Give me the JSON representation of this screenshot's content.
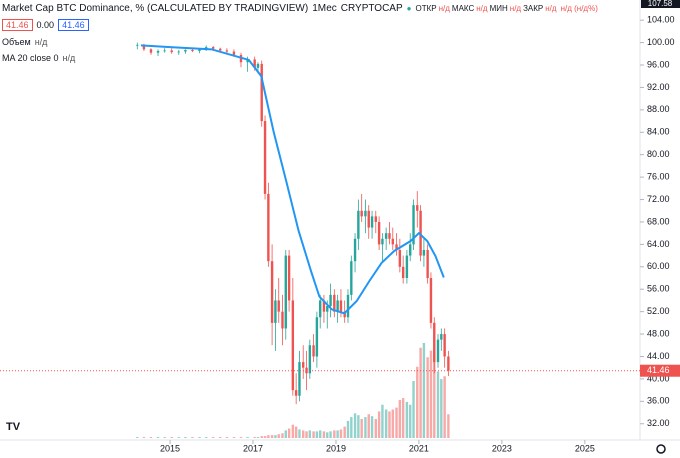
{
  "header": {
    "symbol": "Market Cap BTC Dominance, % (CALCULATED BY TRADINGVIEW)",
    "interval": "1Мес",
    "exchange": "CRYPTOCAP",
    "ohlc": [
      {
        "label": "ОТКР",
        "value": "н/д"
      },
      {
        "label": "МАКС",
        "value": "н/д"
      },
      {
        "label": "МИН",
        "value": "н/д"
      },
      {
        "label": "ЗАКР",
        "value": "н/д"
      },
      {
        "label": "",
        "value": "н/д (н/д%)"
      }
    ],
    "bid": "41.46",
    "spread": "0.00",
    "ask": "41.46",
    "volume_label": "Объем",
    "volume_value": "н/д",
    "ma_label": "MA 20 close 0",
    "ma_value": "н/д",
    "corner_label": "107.58"
  },
  "chart_data": {
    "type": "candlestick",
    "x": [
      2014.21,
      2014.37,
      2014.54,
      2014.71,
      2014.87,
      2015.04,
      2015.21,
      2015.37,
      2015.54,
      2015.71,
      2015.87,
      2016.04,
      2016.21,
      2016.37,
      2016.54,
      2016.71,
      2016.87,
      2017.04,
      2017.12,
      2017.21,
      2017.29,
      2017.37,
      2017.46,
      2017.54,
      2017.62,
      2017.71,
      2017.79,
      2017.87,
      2017.96,
      2018.04,
      2018.12,
      2018.21,
      2018.29,
      2018.37,
      2018.46,
      2018.54,
      2018.62,
      2018.71,
      2018.79,
      2018.87,
      2018.96,
      2019.04,
      2019.12,
      2019.21,
      2019.29,
      2019.37,
      2019.46,
      2019.54,
      2019.62,
      2019.71,
      2019.79,
      2019.87,
      2019.96,
      2020.04,
      2020.12,
      2020.21,
      2020.29,
      2020.37,
      2020.46,
      2020.54,
      2020.62,
      2020.71,
      2020.79,
      2020.87,
      2020.96,
      2021.04,
      2021.12,
      2021.21,
      2021.29,
      2021.37,
      2021.46,
      2021.54,
      2021.62,
      2021.71
    ],
    "open": [
      99.5,
      99.6,
      98.8,
      98.2,
      98.5,
      98.6,
      98.3,
      98.4,
      98.7,
      98.5,
      98.8,
      99.2,
      98.9,
      98.6,
      98.4,
      97.8,
      96.5,
      97,
      95.5,
      96.2,
      86,
      73,
      61,
      50,
      54,
      52,
      49,
      62,
      54,
      38,
      37,
      43,
      42,
      41,
      46,
      44,
      51,
      54,
      52,
      53,
      55,
      52,
      54,
      52,
      51,
      55,
      61,
      65,
      70,
      69,
      70,
      67,
      69,
      68,
      64,
      65,
      66,
      65,
      64,
      63,
      60,
      58,
      62,
      64,
      71,
      70,
      62,
      63,
      58,
      50,
      43,
      47,
      48,
      44
    ],
    "high": [
      100,
      99.8,
      99,
      98.8,
      99,
      99,
      98.7,
      98.8,
      99.1,
      98.9,
      99.5,
      99.4,
      99.1,
      99,
      98.8,
      98.2,
      97.5,
      97.5,
      96.5,
      96.8,
      87,
      75,
      64,
      56,
      58,
      55,
      63,
      63,
      58,
      41,
      45,
      46,
      45,
      47,
      48,
      52,
      55,
      55,
      54,
      57,
      56,
      55,
      56,
      54,
      56,
      62,
      66,
      72,
      73,
      72,
      71,
      70,
      70,
      69,
      66,
      67,
      68,
      67,
      66,
      65,
      62,
      63,
      66,
      72,
      73.5,
      71,
      65,
      64,
      59,
      51,
      48,
      49,
      49,
      45
    ],
    "low": [
      98.8,
      98.5,
      97.8,
      97.6,
      98.2,
      98,
      97.8,
      98,
      98.3,
      98.1,
      98.5,
      98.6,
      98.3,
      98,
      97.5,
      95.6,
      94.8,
      95,
      94.5,
      85,
      72,
      60,
      46,
      45,
      50,
      46,
      47,
      52,
      37,
      35.5,
      36,
      40,
      38,
      40,
      43,
      42,
      49,
      50,
      49,
      51,
      51,
      50,
      51,
      50,
      50,
      54,
      59,
      63,
      68,
      66,
      65,
      65,
      66,
      63,
      61,
      63,
      64,
      63,
      62,
      59,
      57,
      57,
      61,
      63,
      67,
      61,
      60,
      57,
      49,
      41,
      42,
      45,
      42,
      40.5
    ],
    "close": [
      99.6,
      98.8,
      98.2,
      98.5,
      98.6,
      98.3,
      98.4,
      98.7,
      98.5,
      98.8,
      99.2,
      98.9,
      98.6,
      98.4,
      97.8,
      96.5,
      97,
      95.5,
      96.2,
      86,
      73,
      61,
      50,
      54,
      52,
      49,
      62,
      54,
      38,
      37,
      43,
      42,
      41,
      46,
      44,
      51,
      54,
      52,
      53,
      55,
      52,
      54,
      52,
      51,
      55,
      61,
      65,
      70,
      69,
      70,
      67,
      69,
      68,
      64,
      65,
      66,
      65,
      64,
      63,
      60,
      58,
      62,
      64,
      71,
      70,
      62,
      63,
      58,
      50,
      43,
      47,
      48,
      44,
      41.46
    ],
    "volume": [
      1,
      1,
      1,
      1,
      1,
      1,
      1,
      1,
      1,
      1,
      1,
      1,
      1,
      1,
      1,
      1,
      1,
      1,
      1,
      2,
      2,
      3,
      3,
      3,
      4,
      5,
      8,
      10,
      14,
      12,
      9,
      8,
      7,
      8,
      7,
      7,
      8,
      7,
      6,
      7,
      8,
      8,
      9,
      12,
      18,
      22,
      26,
      24,
      20,
      22,
      25,
      23,
      20,
      28,
      35,
      30,
      28,
      30,
      32,
      40,
      42,
      38,
      35,
      60,
      75,
      95,
      100,
      85,
      92,
      88,
      70,
      62,
      65,
      25
    ],
    "ma": {
      "name": "MA 20 close 0",
      "color": "#2196f3",
      "x": [
        2014.3,
        2015.0,
        2016.0,
        2016.9,
        2017.2,
        2017.5,
        2017.8,
        2018.1,
        2018.4,
        2018.6,
        2018.9,
        2019.2,
        2019.5,
        2019.8,
        2020.1,
        2020.4,
        2020.8,
        2021.0,
        2021.2,
        2021.4,
        2021.6
      ],
      "values": [
        99.5,
        99.2,
        98.8,
        96.9,
        94,
        84,
        75.3,
        66.4,
        59.2,
        54.7,
        52.4,
        51.7,
        53.9,
        57.4,
        60.7,
        62.8,
        64.6,
        66,
        64.6,
        61.9,
        58.1
      ]
    },
    "up_color": "#26a69a",
    "down_color": "#ef5350",
    "xlim": [
      2010.9,
      2026.33
    ],
    "xticks": [
      2015,
      2017,
      2019,
      2021,
      2023,
      2025
    ],
    "ylim": [
      29.1,
      107.6
    ],
    "yticks": [
      {
        "value": 32,
        "label": "32.00"
      },
      {
        "value": 36,
        "label": "36.00"
      },
      {
        "value": 40,
        "label": "40.00"
      },
      {
        "value": 44,
        "label": "44.00"
      },
      {
        "value": 48,
        "label": "48.00"
      },
      {
        "value": 52,
        "label": "52.00"
      },
      {
        "value": 56,
        "label": "56.00"
      },
      {
        "value": 60,
        "label": "60.00"
      },
      {
        "value": 64,
        "label": "64.00"
      },
      {
        "value": 68,
        "label": "68.00"
      },
      {
        "value": 72,
        "label": "72.00"
      },
      {
        "value": 76,
        "label": "76.00"
      },
      {
        "value": 80,
        "label": "80.00"
      },
      {
        "value": 84,
        "label": "84.00"
      },
      {
        "value": 88,
        "label": "88.00"
      },
      {
        "value": 92,
        "label": "92.00"
      },
      {
        "value": 96,
        "label": "96.00"
      },
      {
        "value": 100,
        "label": "100.00"
      },
      {
        "value": 104,
        "label": "104.00"
      }
    ],
    "grid": false
  }
}
